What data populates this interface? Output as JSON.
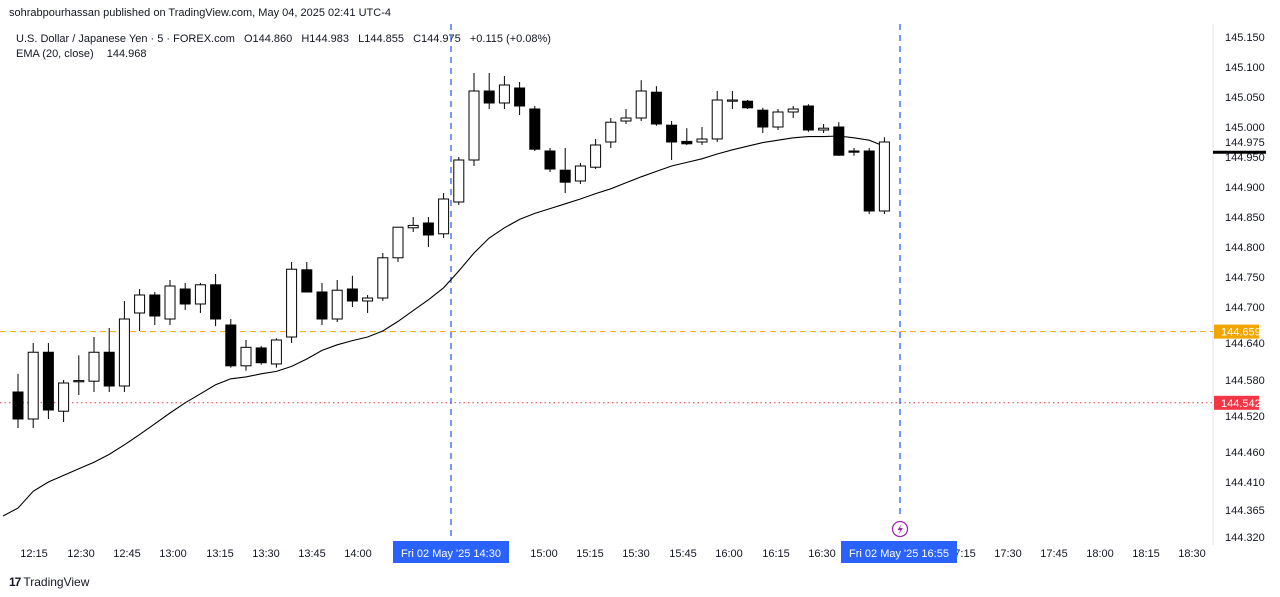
{
  "publisher_line": "sohrabpourhassan published on TradingView.com, May 04, 2025 02:41 UTC-4",
  "legend": {
    "symbol": "U.S. Dollar / Japanese Yen · 5 · FOREX.com",
    "open": "O144.860",
    "high": "H144.983",
    "low": "L144.855",
    "close": "C144.975",
    "change": "+0.115 (+0.08%)",
    "ema_label": "EMA (20, close)",
    "ema_value": "144.968"
  },
  "brand": {
    "logo_text": "17",
    "name": "TradingView"
  },
  "colors": {
    "bull_fill": "#ffffff",
    "bear_fill": "#000000",
    "wick": "#000000",
    "ema": "#000000",
    "orange_line": "#f0a500",
    "red_line": "#f23645",
    "vline": "#2962ff",
    "axis_tag_bg": "#2962ff",
    "lightning": "#9c27b0"
  },
  "chart_data": {
    "type": "candlestick",
    "y_axis_ticks": [
      "145.150",
      "145.100",
      "145.050",
      "145.000",
      "144.975",
      "144.950",
      "144.900",
      "144.850",
      "144.800",
      "144.750",
      "144.700",
      "144.640",
      "144.580",
      "144.520",
      "144.460",
      "144.410",
      "144.365",
      "144.320"
    ],
    "x_axis_ticks": [
      "12:15",
      "12:30",
      "12:45",
      "13:00",
      "13:15",
      "13:30",
      "13:45",
      "14:00",
      "15:00",
      "15:15",
      "15:30",
      "15:45",
      "16:00",
      "16:15",
      "16:30",
      "7:15",
      "17:30",
      "17:45",
      "18:00",
      "18:15",
      "18:30"
    ],
    "x_axis_tags": [
      "Fri 02 May '25   14:30",
      "Fri 02 May '25   16:55"
    ],
    "price_tags": [
      {
        "label": "144.975",
        "value": 144.975,
        "color": "#131722",
        "style": "plain"
      },
      {
        "label": "144.659",
        "value": 144.659,
        "color": "#f0a500",
        "style": "dashed"
      },
      {
        "label": "144.542",
        "value": 144.542,
        "color": "#f23645",
        "style": "dotted"
      }
    ],
    "current_price_line": 144.958,
    "candles": [
      {
        "o": 144.56,
        "h": 144.59,
        "l": 144.5,
        "c": 144.515
      },
      {
        "o": 144.515,
        "h": 144.64,
        "l": 144.5,
        "c": 144.625
      },
      {
        "o": 144.625,
        "h": 144.64,
        "l": 144.515,
        "c": 144.53
      },
      {
        "o": 144.528,
        "h": 144.58,
        "l": 144.51,
        "c": 144.575
      },
      {
        "o": 144.577,
        "h": 144.62,
        "l": 144.555,
        "c": 144.579
      },
      {
        "o": 144.578,
        "h": 144.65,
        "l": 144.56,
        "c": 144.625
      },
      {
        "o": 144.625,
        "h": 144.665,
        "l": 144.56,
        "c": 144.57
      },
      {
        "o": 144.57,
        "h": 144.71,
        "l": 144.56,
        "c": 144.68
      },
      {
        "o": 144.69,
        "h": 144.73,
        "l": 144.66,
        "c": 144.72
      },
      {
        "o": 144.72,
        "h": 144.725,
        "l": 144.67,
        "c": 144.685
      },
      {
        "o": 144.68,
        "h": 144.745,
        "l": 144.67,
        "c": 144.735
      },
      {
        "o": 144.73,
        "h": 144.74,
        "l": 144.695,
        "c": 144.705
      },
      {
        "o": 144.705,
        "h": 144.74,
        "l": 144.69,
        "c": 144.737
      },
      {
        "o": 144.737,
        "h": 144.755,
        "l": 144.668,
        "c": 144.68
      },
      {
        "o": 144.67,
        "h": 144.68,
        "l": 144.6,
        "c": 144.603
      },
      {
        "o": 144.603,
        "h": 144.645,
        "l": 144.595,
        "c": 144.633
      },
      {
        "o": 144.632,
        "h": 144.635,
        "l": 144.605,
        "c": 144.608
      },
      {
        "o": 144.606,
        "h": 144.648,
        "l": 144.6,
        "c": 144.645
      },
      {
        "o": 144.65,
        "h": 144.775,
        "l": 144.64,
        "c": 144.763
      },
      {
        "o": 144.762,
        "h": 144.775,
        "l": 144.725,
        "c": 144.725
      },
      {
        "o": 144.725,
        "h": 144.74,
        "l": 144.67,
        "c": 144.68
      },
      {
        "o": 144.68,
        "h": 144.745,
        "l": 144.675,
        "c": 144.728
      },
      {
        "o": 144.73,
        "h": 144.752,
        "l": 144.7,
        "c": 144.71
      },
      {
        "o": 144.71,
        "h": 144.72,
        "l": 144.69,
        "c": 144.715
      },
      {
        "o": 144.715,
        "h": 144.79,
        "l": 144.71,
        "c": 144.782
      },
      {
        "o": 144.782,
        "h": 144.833,
        "l": 144.775,
        "c": 144.833
      },
      {
        "o": 144.832,
        "h": 144.85,
        "l": 144.825,
        "c": 144.836
      },
      {
        "o": 144.84,
        "h": 144.85,
        "l": 144.8,
        "c": 144.82
      },
      {
        "o": 144.822,
        "h": 144.89,
        "l": 144.815,
        "c": 144.88
      },
      {
        "o": 144.875,
        "h": 144.95,
        "l": 144.87,
        "c": 144.945
      },
      {
        "o": 144.945,
        "h": 145.09,
        "l": 144.935,
        "c": 145.06
      },
      {
        "o": 145.06,
        "h": 145.09,
        "l": 145.03,
        "c": 145.04
      },
      {
        "o": 145.04,
        "h": 145.085,
        "l": 145.03,
        "c": 145.07
      },
      {
        "o": 145.065,
        "h": 145.075,
        "l": 145.02,
        "c": 145.035
      },
      {
        "o": 145.03,
        "h": 145.035,
        "l": 144.96,
        "c": 144.963
      },
      {
        "o": 144.96,
        "h": 144.965,
        "l": 144.925,
        "c": 144.93
      },
      {
        "o": 144.928,
        "h": 144.965,
        "l": 144.89,
        "c": 144.908
      },
      {
        "o": 144.91,
        "h": 144.94,
        "l": 144.905,
        "c": 144.935
      },
      {
        "o": 144.933,
        "h": 144.98,
        "l": 144.93,
        "c": 144.97
      },
      {
        "o": 144.975,
        "h": 145.015,
        "l": 144.965,
        "c": 145.008
      },
      {
        "o": 145.01,
        "h": 145.03,
        "l": 145.005,
        "c": 145.015
      },
      {
        "o": 145.015,
        "h": 145.078,
        "l": 145.01,
        "c": 145.06
      },
      {
        "o": 145.058,
        "h": 145.068,
        "l": 145.002,
        "c": 145.005
      },
      {
        "o": 145.003,
        "h": 145.01,
        "l": 144.945,
        "c": 144.975
      },
      {
        "o": 144.976,
        "h": 144.998,
        "l": 144.97,
        "c": 144.972
      },
      {
        "o": 144.975,
        "h": 145.0,
        "l": 144.97,
        "c": 144.98
      },
      {
        "o": 144.98,
        "h": 145.06,
        "l": 144.975,
        "c": 145.045
      },
      {
        "o": 145.043,
        "h": 145.06,
        "l": 145.03,
        "c": 145.045
      },
      {
        "o": 145.043,
        "h": 145.045,
        "l": 145.03,
        "c": 145.032
      },
      {
        "o": 145.028,
        "h": 145.032,
        "l": 144.99,
        "c": 145.0
      },
      {
        "o": 145.0,
        "h": 145.03,
        "l": 144.995,
        "c": 145.025
      },
      {
        "o": 145.025,
        "h": 145.035,
        "l": 145.015,
        "c": 145.03
      },
      {
        "o": 145.035,
        "h": 145.038,
        "l": 144.992,
        "c": 144.995
      },
      {
        "o": 144.995,
        "h": 145.005,
        "l": 144.99,
        "c": 144.998
      },
      {
        "o": 145.0,
        "h": 145.008,
        "l": 144.952,
        "c": 144.953
      },
      {
        "o": 144.96,
        "h": 144.965,
        "l": 144.952,
        "c": 144.958
      },
      {
        "o": 144.96,
        "h": 144.965,
        "l": 144.855,
        "c": 144.86
      },
      {
        "o": 144.86,
        "h": 144.983,
        "l": 144.855,
        "c": 144.975
      }
    ],
    "ema": [
      144.368,
      144.395,
      144.41,
      144.421,
      144.432,
      144.443,
      144.456,
      144.472,
      144.489,
      144.507,
      144.525,
      144.542,
      144.557,
      144.572,
      144.582,
      144.585,
      144.59,
      144.594,
      144.602,
      144.614,
      144.628,
      144.637,
      144.644,
      144.65,
      144.66,
      144.676,
      144.694,
      144.712,
      144.732,
      144.76,
      144.79,
      144.815,
      144.832,
      144.846,
      144.856,
      144.864,
      144.872,
      144.88,
      144.889,
      144.897,
      144.907,
      144.917,
      144.926,
      144.935,
      144.941,
      144.947,
      144.955,
      144.962,
      144.968,
      144.974,
      144.978,
      144.982,
      144.984,
      144.984,
      144.985,
      144.982,
      144.978,
      144.968
    ]
  }
}
